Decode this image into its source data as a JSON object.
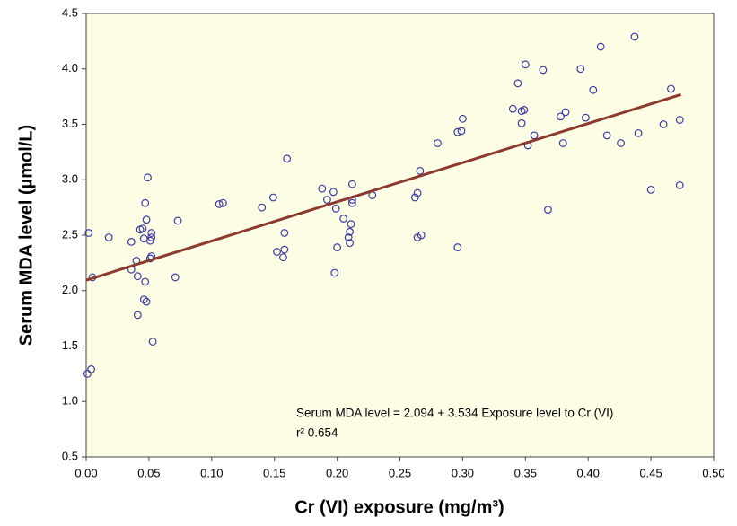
{
  "chart_data": {
    "type": "scatter",
    "x_label": "Cr (VI) exposure (mg/m³)",
    "y_label": "Serum MDA level (µmol/L)",
    "annotations": [
      "Serum MDA level = 2.094 + 3.534 Exposure level to Cr (VI)",
      "r²  0.654"
    ],
    "x": [
      0.002,
      0.005,
      0.018,
      0.001,
      0.004,
      0.036,
      0.036,
      0.04,
      0.041,
      0.041,
      0.043,
      0.045,
      0.046,
      0.047,
      0.048,
      0.049,
      0.046,
      0.048,
      0.047,
      0.052,
      0.052,
      0.051,
      0.052,
      0.051,
      0.053,
      0.071,
      0.073,
      0.106,
      0.109,
      0.14,
      0.149,
      0.152,
      0.157,
      0.158,
      0.158,
      0.16,
      0.188,
      0.192,
      0.197,
      0.199,
      0.198,
      0.2,
      0.205,
      0.209,
      0.21,
      0.21,
      0.211,
      0.212,
      0.212,
      0.212,
      0.228,
      0.262,
      0.264,
      0.266,
      0.264,
      0.267,
      0.28,
      0.296,
      0.296,
      0.299,
      0.3,
      0.34,
      0.344,
      0.347,
      0.347,
      0.349,
      0.35,
      0.352,
      0.357,
      0.364,
      0.368,
      0.378,
      0.382,
      0.38,
      0.394,
      0.398,
      0.404,
      0.41,
      0.415,
      0.426,
      0.437,
      0.44,
      0.45,
      0.46,
      0.466,
      0.473,
      0.473
    ],
    "series": [
      {
        "color": "#3b3b9e",
        "values": [
          2.52,
          2.12,
          2.48,
          1.25,
          1.29,
          2.44,
          2.19,
          2.27,
          2.13,
          1.78,
          2.55,
          2.56,
          2.47,
          2.79,
          2.64,
          3.02,
          1.92,
          1.9,
          2.08,
          2.52,
          2.48,
          2.45,
          2.31,
          2.29,
          1.54,
          2.12,
          2.63,
          2.78,
          2.79,
          2.75,
          2.84,
          2.35,
          2.3,
          2.37,
          2.52,
          3.19,
          2.92,
          2.82,
          2.89,
          2.74,
          2.16,
          2.39,
          2.65,
          2.48,
          2.43,
          2.53,
          2.6,
          2.79,
          2.82,
          2.96,
          2.86,
          2.84,
          2.88,
          3.08,
          2.48,
          2.5,
          3.33,
          3.43,
          2.39,
          3.44,
          3.55,
          3.64,
          3.87,
          3.62,
          3.51,
          3.63,
          4.04,
          3.31,
          3.4,
          3.99,
          2.73,
          3.57,
          3.61,
          3.33,
          4.0,
          3.56,
          3.81,
          4.2,
          3.4,
          3.33,
          4.29,
          3.42,
          2.91,
          3.5,
          3.82,
          3.54,
          2.95
        ]
      }
    ],
    "trendline": {
      "color": "#8b3a2e",
      "x": [
        0,
        0.474
      ],
      "values": [
        2.094,
        3.769
      ]
    },
    "xlim": [
      0,
      0.5
    ],
    "xticks": [
      {
        "value": 0,
        "label": "0.00"
      },
      {
        "value": 0.05,
        "label": "0.05"
      },
      {
        "value": 0.1,
        "label": "0.10"
      },
      {
        "value": 0.15,
        "label": "0.15"
      },
      {
        "value": 0.2,
        "label": "0.20"
      },
      {
        "value": 0.25,
        "label": "0.25"
      },
      {
        "value": 0.3,
        "label": "0.30"
      },
      {
        "value": 0.35,
        "label": "0.35"
      },
      {
        "value": 0.4,
        "label": "0.40"
      },
      {
        "value": 0.45,
        "label": "0.45"
      },
      {
        "value": 0.5,
        "label": "0.50"
      }
    ],
    "ylim": [
      0.5,
      4.5
    ],
    "yticks": [
      0.5,
      {
        "value": 1,
        "label": "1.0"
      },
      1.5,
      {
        "value": 2,
        "label": "2.0"
      },
      2.5,
      {
        "value": 3,
        "label": "3.0"
      },
      3.5,
      {
        "value": 4,
        "label": "4.0"
      },
      4.5
    ]
  }
}
